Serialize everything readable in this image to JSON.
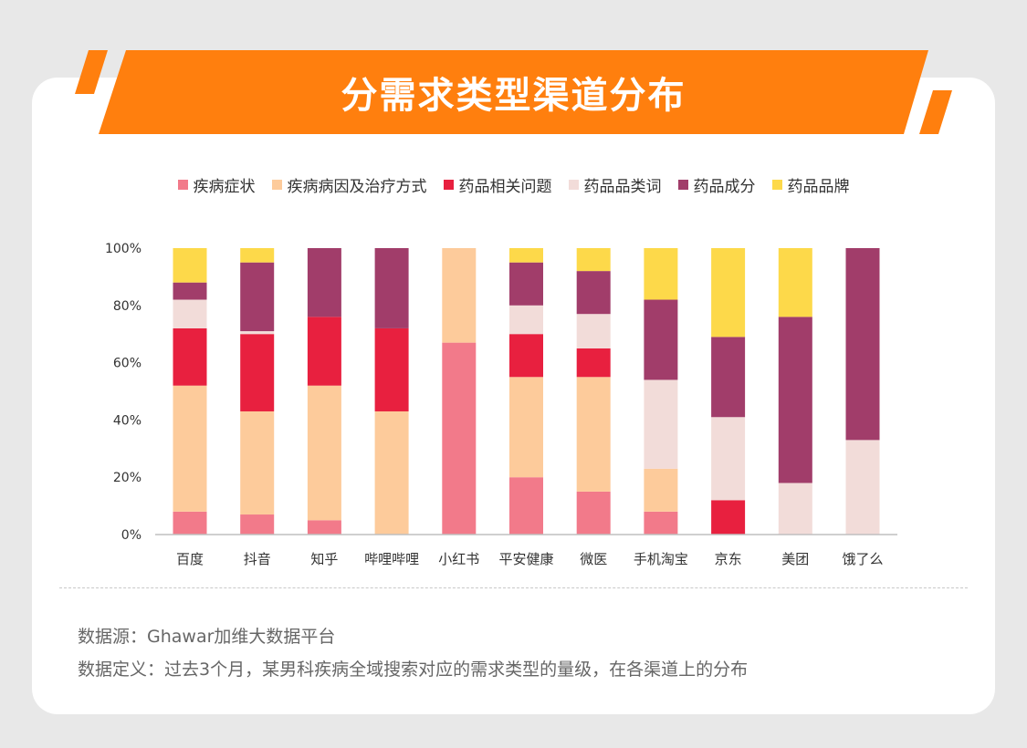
{
  "header": {
    "title": "分需求类型渠道分布"
  },
  "colors": {
    "banner": "#ff7f0e",
    "card": "#ffffff",
    "background": "#e8e8e8"
  },
  "chart_data": {
    "type": "bar",
    "stacked": true,
    "percent": true,
    "categories": [
      "百度",
      "抖音",
      "知乎",
      "哔哩哔哩",
      "小红书",
      "平安健康",
      "微医",
      "手机淘宝",
      "京东",
      "美团",
      "饿了么"
    ],
    "series": [
      {
        "name": "疾病症状",
        "color": "#f27a8a",
        "values": [
          8,
          7,
          5,
          0,
          67,
          20,
          15,
          8,
          0,
          0,
          0
        ]
      },
      {
        "name": "疾病病因及治疗方式",
        "color": "#fdcb9b",
        "values": [
          44,
          36,
          47,
          43,
          33,
          35,
          40,
          15,
          0,
          0,
          0
        ]
      },
      {
        "name": "药品相关问题",
        "color": "#e8203f",
        "values": [
          20,
          27,
          24,
          29,
          0,
          15,
          10,
          0,
          12,
          0,
          0
        ]
      },
      {
        "name": "药品品类词",
        "color": "#f2dcd9",
        "values": [
          10,
          1,
          0,
          0,
          0,
          10,
          12,
          31,
          29,
          18,
          33
        ]
      },
      {
        "name": "药品成分",
        "color": "#a13d6a",
        "values": [
          6,
          24,
          24,
          28,
          0,
          15,
          15,
          28,
          28,
          58,
          67
        ]
      },
      {
        "name": "药品品牌",
        "color": "#fdd94a",
        "values": [
          12,
          5,
          0,
          0,
          0,
          5,
          8,
          18,
          31,
          24,
          0
        ]
      }
    ],
    "ylim": [
      0,
      100
    ],
    "yticks": [
      "0%",
      "20%",
      "40%",
      "60%",
      "80%",
      "100%"
    ],
    "legend_position": "top-center",
    "grid": false
  },
  "footnotes": {
    "source": "数据源：Ghawar加维大数据平台",
    "definition": "数据定义：过去3个月，某男科疾病全域搜索对应的需求类型的量级，在各渠道上的分布"
  }
}
